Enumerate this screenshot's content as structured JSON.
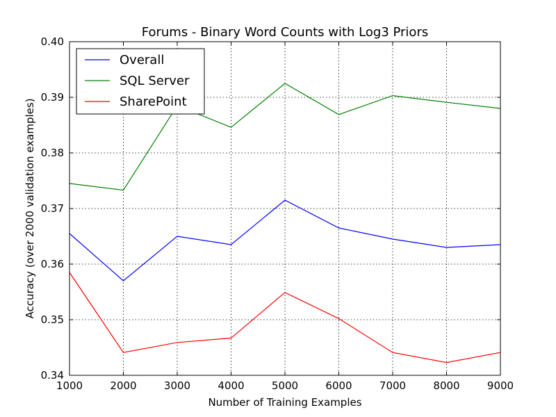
{
  "chart_data": {
    "type": "line",
    "title": "Forums - Binary Word Counts with Log3 Priors",
    "xlabel": "Number of Training Examples",
    "ylabel": "Accuracy (over 2000 validation examples)",
    "x": [
      1000,
      2000,
      3000,
      4000,
      5000,
      6000,
      7000,
      8000,
      9000
    ],
    "xlim": [
      1000,
      9000
    ],
    "ylim": [
      0.34,
      0.4
    ],
    "xticks": [
      "1000",
      "2000",
      "3000",
      "4000",
      "5000",
      "6000",
      "7000",
      "8000",
      "9000"
    ],
    "yticks": [
      "0.34",
      "0.35",
      "0.36",
      "0.37",
      "0.38",
      "0.39",
      "0.40"
    ],
    "grid": true,
    "legend_position": "top-left",
    "series": [
      {
        "name": "Overall",
        "color": "#0000ff",
        "values": [
          0.3655,
          0.357,
          0.365,
          0.3635,
          0.3715,
          0.3665,
          0.3645,
          0.363,
          0.3635
        ]
      },
      {
        "name": "SQL Server",
        "color": "#008000",
        "values": [
          0.3745,
          0.3733,
          0.3885,
          0.3846,
          0.3925,
          0.3869,
          0.3903,
          0.3891,
          0.388
        ]
      },
      {
        "name": "SharePoint",
        "color": "#ff0000",
        "values": [
          0.3585,
          0.3441,
          0.3459,
          0.3467,
          0.3549,
          0.3502,
          0.3441,
          0.3423,
          0.3441
        ]
      }
    ]
  }
}
